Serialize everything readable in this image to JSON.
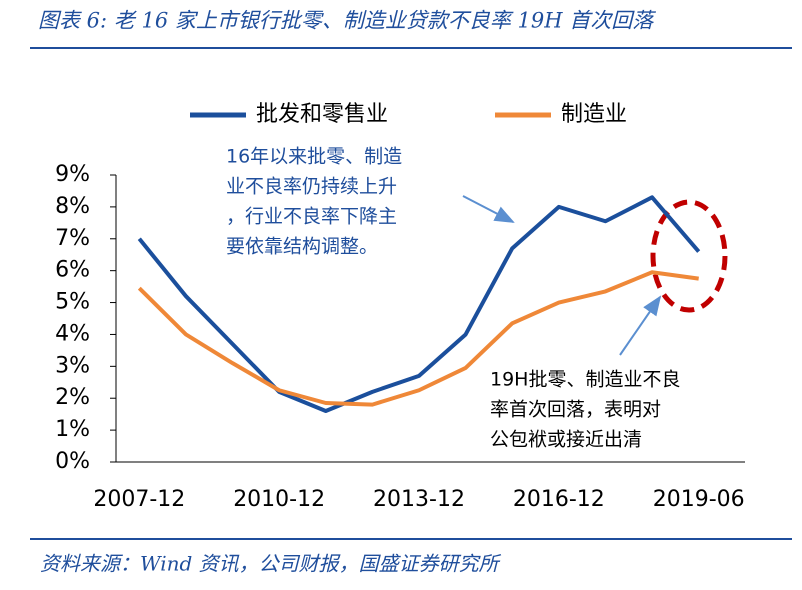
{
  "header": {
    "title": "图表 6:  老 16 家上市银行批零、制造业贷款不良率 19H 首次回落"
  },
  "chart_data": {
    "type": "line",
    "categories": [
      "2007-12",
      null,
      null,
      "2010-12",
      null,
      null,
      "2013-12",
      null,
      null,
      "2016-12",
      null,
      null,
      "2019-06"
    ],
    "series": [
      {
        "name": "批发和零售业",
        "color": "#1b4f9c",
        "values": [
          7.0,
          5.2,
          3.7,
          2.2,
          1.6,
          2.2,
          2.7,
          4.0,
          6.7,
          8.0,
          7.55,
          8.3,
          6.6
        ]
      },
      {
        "name": "制造业",
        "color": "#ef8838",
        "values": [
          5.45,
          4.0,
          3.1,
          2.25,
          1.85,
          1.8,
          2.25,
          2.95,
          4.35,
          5.0,
          5.35,
          5.95,
          5.75
        ]
      }
    ],
    "ylim": [
      0,
      9
    ],
    "yticks": [
      {
        "value": 0,
        "label": "0%"
      },
      {
        "value": 1,
        "label": "1%"
      },
      {
        "value": 2,
        "label": "2%"
      },
      {
        "value": 3,
        "label": "3%"
      },
      {
        "value": 4,
        "label": "4%"
      },
      {
        "value": 5,
        "label": "5%"
      },
      {
        "value": 6,
        "label": "6%"
      },
      {
        "value": 7,
        "label": "7%"
      },
      {
        "value": 8,
        "label": "8%"
      },
      {
        "value": 9,
        "label": "9%"
      }
    ],
    "annotations": [
      [
        "16年以来批零、制造",
        "业不良率仍持续上升",
        "，行业不良率下降主",
        "要依靠结构调整。"
      ],
      [
        "19H批零、制造业不良",
        "率首次回落，表明对",
        "公包袱或接近出清"
      ]
    ]
  },
  "footer": {
    "source": "资料来源：Wind 资讯，公司财报，国盛证券研究所"
  }
}
